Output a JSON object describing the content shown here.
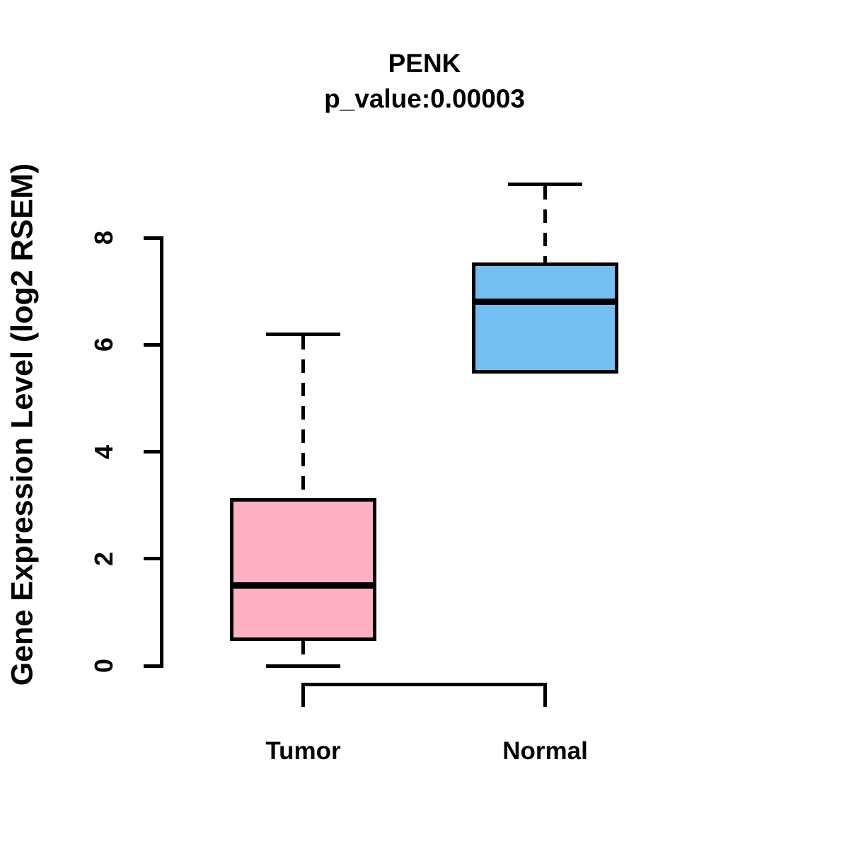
{
  "title": "PENK",
  "subtitle": "p_value:0.00003",
  "y_axis": {
    "label": "Gene Expression Level (log2 RSEM)"
  },
  "colors": {
    "tumor_fill": "#FFB1C3",
    "normal_fill": "#73BFF2",
    "line": "#000000",
    "background": "#FFFFFF"
  },
  "chart_data": {
    "type": "boxplot",
    "title": "PENK",
    "subtitle": "p_value:0.00003",
    "p_value": 3e-05,
    "ylabel": "Gene Expression Level (log2 RSEM)",
    "ylim": [
      0,
      8
    ],
    "yticks": [
      0,
      2,
      4,
      6,
      8
    ],
    "categories": [
      "Tumor",
      "Normal"
    ],
    "series": [
      {
        "name": "Tumor",
        "color": "#FFB1C3",
        "whisker_low": 0,
        "q1": 0.5,
        "median": 1.5,
        "q3": 3.1,
        "whisker_high": 6.2
      },
      {
        "name": "Normal",
        "color": "#73BFF2",
        "whisker_low": 5.5,
        "q1": 5.5,
        "median": 6.8,
        "q3": 7.5,
        "whisker_high": 9.0
      }
    ]
  }
}
